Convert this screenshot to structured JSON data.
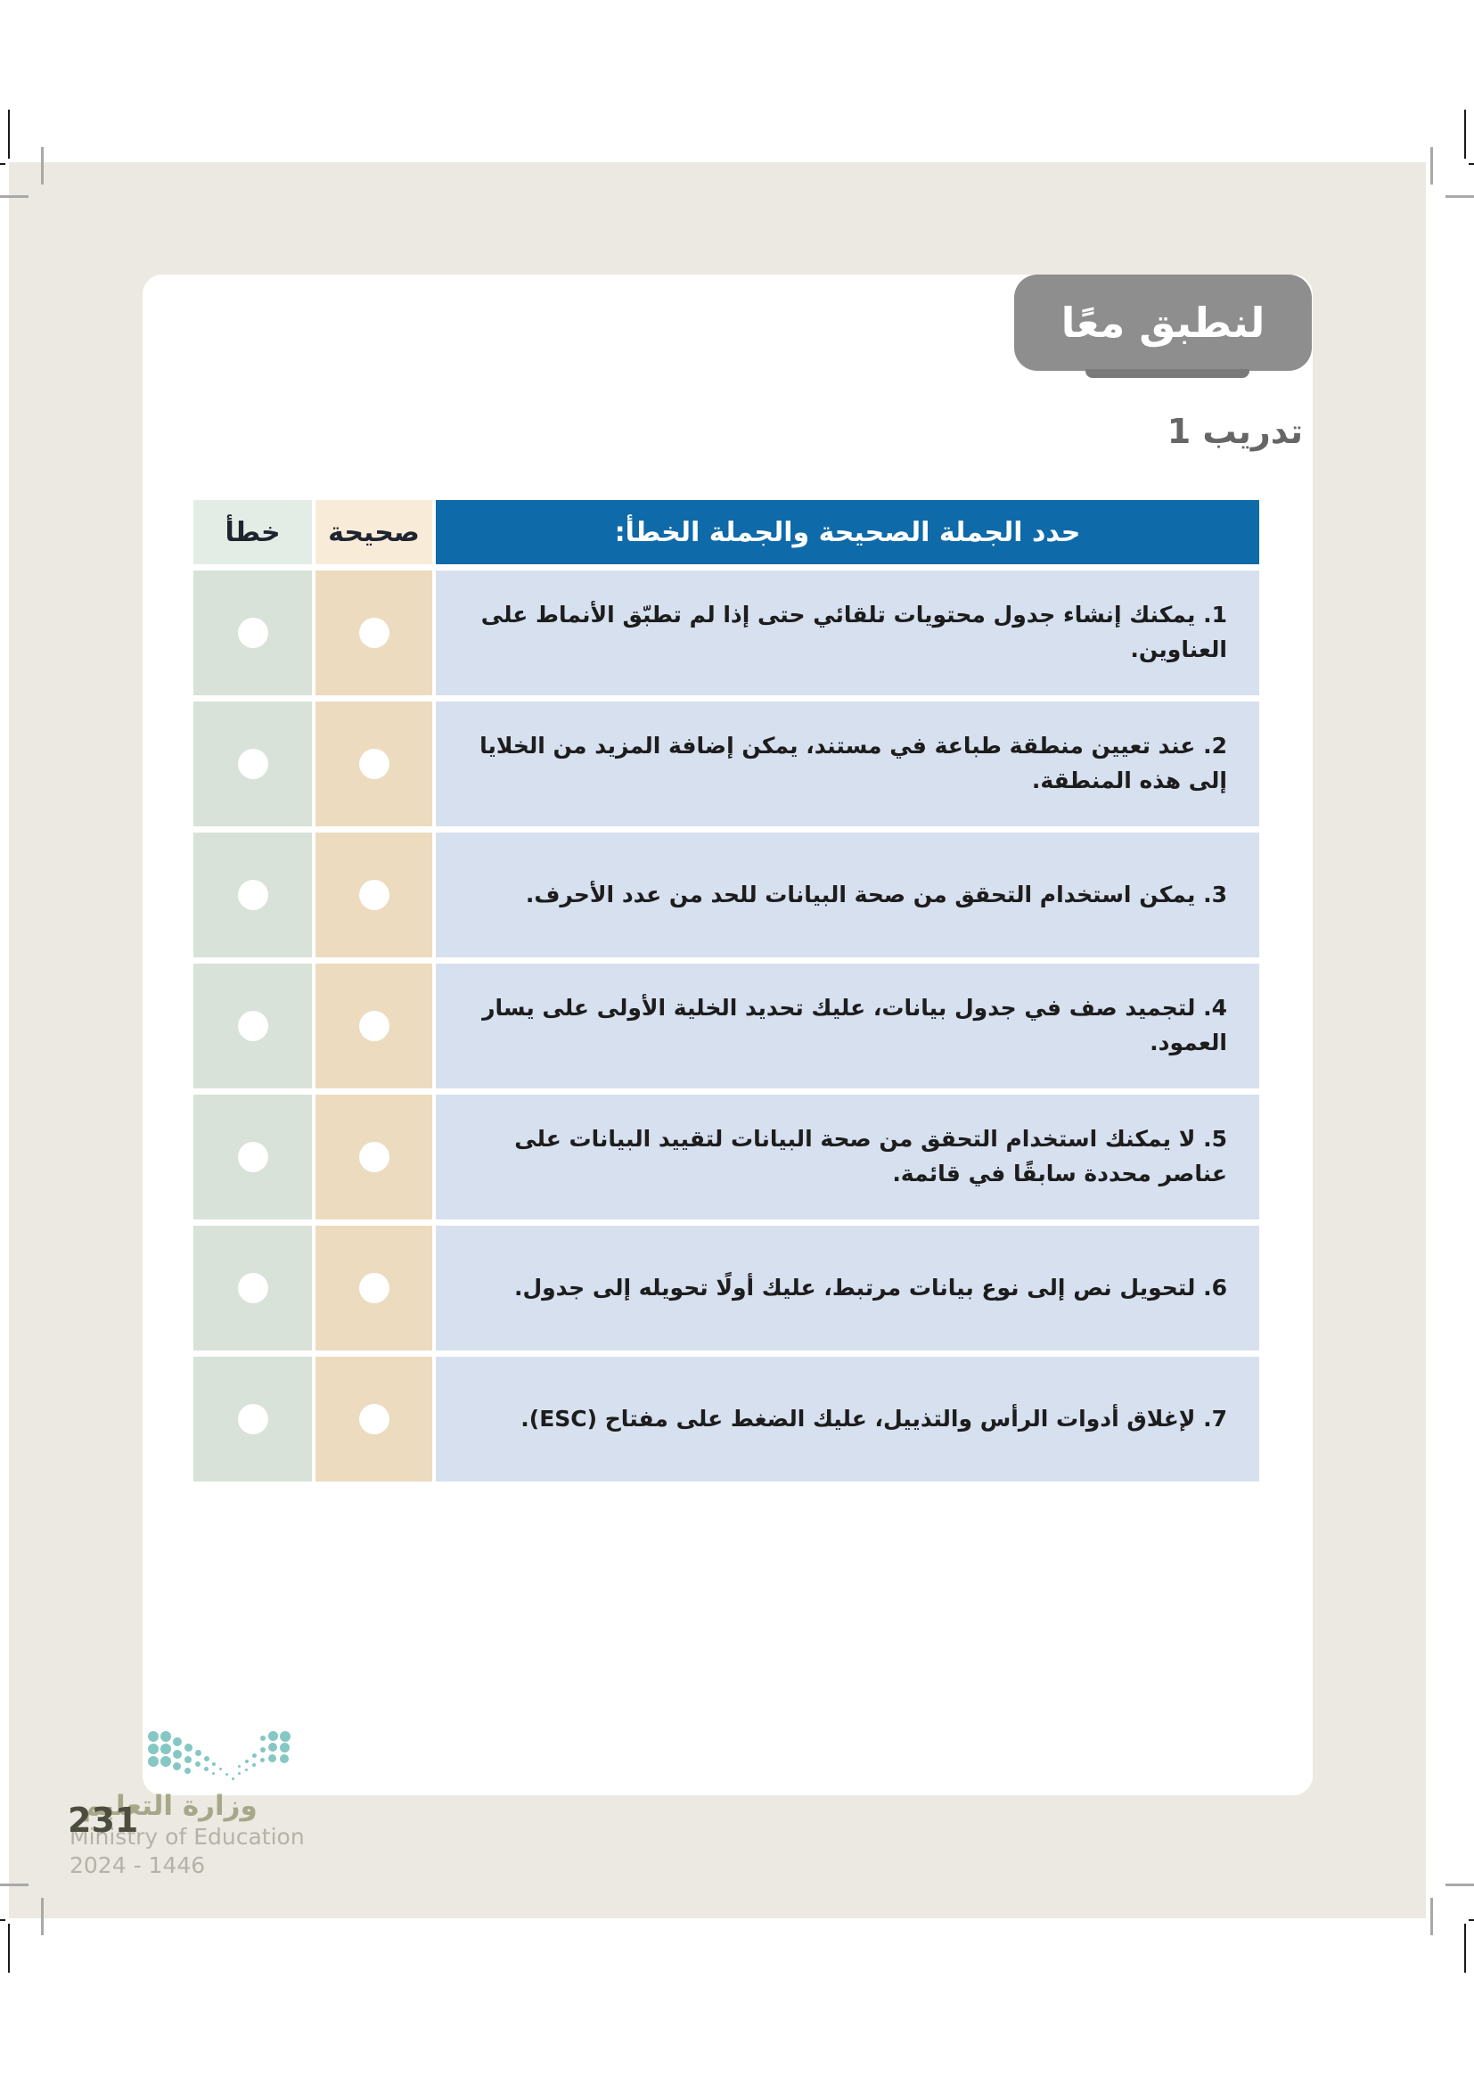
{
  "page": {
    "badge_title": "لنطبق معًا",
    "exercise_label": "تدريب 1"
  },
  "table": {
    "header": {
      "statement_label": "حدد الجملة الصحيحة والجملة الخطأ:",
      "correct_label": "صحيحة",
      "wrong_label": "خطأ"
    },
    "rows": [
      {
        "statement": "1. يمكنك إنشاء جدول محتويات تلقائي حتى إذا لم تطبّق الأنماط على العناوين."
      },
      {
        "statement": "2. عند تعيين منطقة طباعة في مستند، يمكن إضافة المزيد من الخلايا إلى هذه المنطقة."
      },
      {
        "statement": "3. يمكن استخدام التحقق من صحة البيانات للحد من عدد الأحرف."
      },
      {
        "statement": "4. لتجميد صف في جدول بيانات، عليك تحديد الخلية الأولى على يسار العمود."
      },
      {
        "statement": "5. لا يمكنك استخدام التحقق من صحة البيانات لتقييد البيانات على عناصر محددة سابقًا في قائمة."
      },
      {
        "statement": "6. لتحويل نص إلى نوع بيانات مرتبط، عليك أولًا تحويله إلى جدول."
      },
      {
        "statement": "7. لإغلاق أدوات الرأس والتذييل، عليك الضغط على مفتاح (ESC)."
      }
    ]
  },
  "footer": {
    "page_number": "231",
    "ministry_ar": "وزارة التعليم",
    "ministry_en": "Ministry of Education",
    "edition_years": "2024 - 1446",
    "logo_icon": "ministry-of-education-dots-logo"
  },
  "colors": {
    "background_beige": "#ebe9e1",
    "card_white": "#ffffff",
    "badge_gray": "#8e8e8e",
    "badge_tab_gray": "#7a7a7a",
    "table_header_blue": "#0f6aa9",
    "statement_row_blue": "#d7e0ef",
    "correct_cell_tan": "#ecdbbe",
    "correct_header_tan": "#f8ecd9",
    "wrong_cell_green": "#d8e2d8",
    "wrong_header_green": "#e4ede5",
    "ministry_logo_teal": "#85c7c3"
  }
}
